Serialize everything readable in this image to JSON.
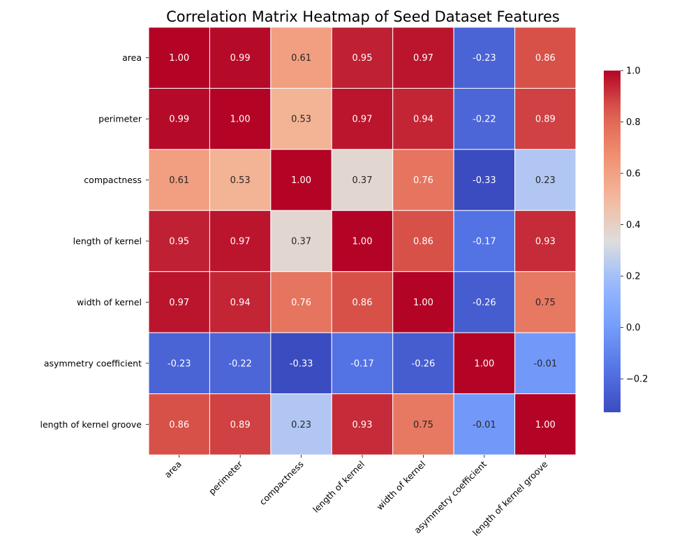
{
  "chart_data": {
    "type": "heatmap",
    "title": "Correlation Matrix Heatmap of Seed Dataset Features",
    "row_labels": [
      "area",
      "perimeter",
      "compactness",
      "length of kernel",
      "width of kernel",
      "asymmetry coefficient",
      "length of kernel groove"
    ],
    "col_labels": [
      "area",
      "perimeter",
      "compactness",
      "length of kernel",
      "width of kernel",
      "asymmetry coefficient",
      "length of kernel groove"
    ],
    "values": [
      [
        1.0,
        0.99,
        0.61,
        0.95,
        0.97,
        -0.23,
        0.86
      ],
      [
        0.99,
        1.0,
        0.53,
        0.97,
        0.94,
        -0.22,
        0.89
      ],
      [
        0.61,
        0.53,
        1.0,
        0.37,
        0.76,
        -0.33,
        0.23
      ],
      [
        0.95,
        0.97,
        0.37,
        1.0,
        0.86,
        -0.17,
        0.93
      ],
      [
        0.97,
        0.94,
        0.76,
        0.86,
        1.0,
        -0.26,
        0.75
      ],
      [
        -0.23,
        -0.22,
        -0.33,
        -0.17,
        -0.26,
        1.0,
        -0.01
      ],
      [
        0.86,
        0.89,
        0.23,
        0.93,
        0.75,
        -0.01,
        1.0
      ]
    ],
    "value_format": "0.00",
    "colormap": "coolwarm",
    "vmin": -0.33,
    "vmax": 1.0,
    "colorbar_ticks": [
      -0.2,
      0.0,
      0.2,
      0.4,
      0.6,
      0.8,
      1.0
    ],
    "colorbar_tick_labels": [
      "−0.2",
      "0.0",
      "0.2",
      "0.4",
      "0.6",
      "0.8",
      "1.0"
    ],
    "colorbar_placement": "right",
    "cell_border_color": "#ffffff"
  }
}
